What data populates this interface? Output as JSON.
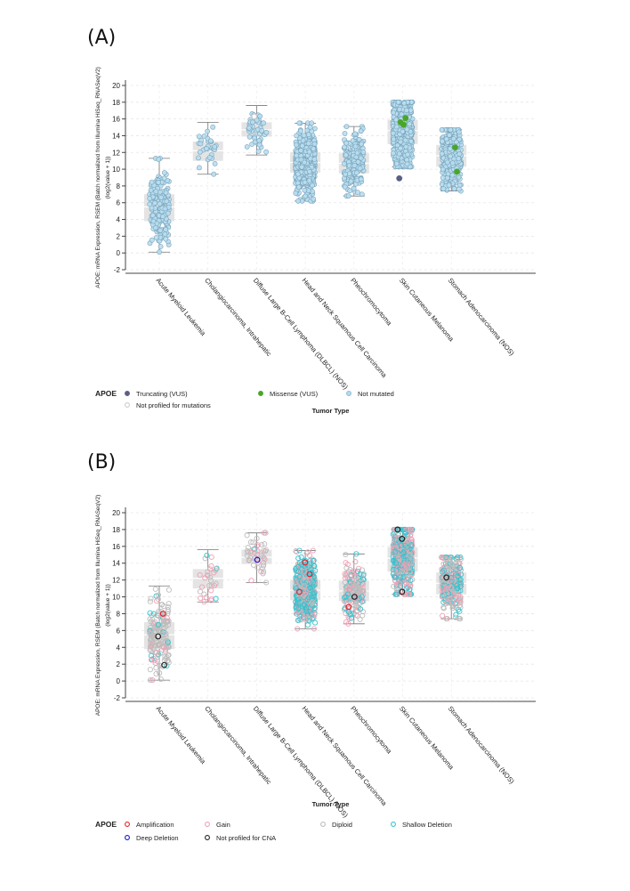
{
  "panels": [
    {
      "label": "(A)"
    },
    {
      "label": "(B)"
    }
  ],
  "chart_data": [
    {
      "type": "scatter",
      "subtype": "box-strip",
      "title": "",
      "ylabel_lines": [
        "APOE: mRNA Expression, RSEM (Batch normalized from Illumina HiSeq_RNASeqV2)",
        "(log2(value + 1))"
      ],
      "xlabel": "Tumor Type",
      "ylim": [
        -2,
        20
      ],
      "yticks": [
        -2,
        0,
        2,
        4,
        6,
        8,
        10,
        12,
        14,
        16,
        18,
        20
      ],
      "grid": true,
      "categories": [
        "Acute Myeloid Leukemia",
        "Cholangiocarcinoma, Intrahepatic",
        "Diffuse Large B-Cell Lymphoma (DLBCL) (NOS)",
        "Head and Neck Squamous Cell Carcinoma",
        "Pheochromocytoma",
        "Skin Cutaneous Melanoma",
        "Stomach Adenocarcinoma (NOS)"
      ],
      "boxes": [
        {
          "q1": 3.8,
          "median": 5.5,
          "q3": 7.0,
          "whisker_low": 0.1,
          "whisker_high": 11.3,
          "n": 170
        },
        {
          "q1": 11.0,
          "median": 12.2,
          "q3": 13.3,
          "whisker_low": 9.4,
          "whisker_high": 15.6,
          "n": 30
        },
        {
          "q1": 13.9,
          "median": 14.7,
          "q3": 15.6,
          "whisker_low": 11.7,
          "whisker_high": 17.6,
          "n": 45
        },
        {
          "q1": 9.6,
          "median": 10.8,
          "q3": 12.0,
          "whisker_low": 6.2,
          "whisker_high": 15.5,
          "n": 500
        },
        {
          "q1": 9.5,
          "median": 10.7,
          "q3": 11.9,
          "whisker_low": 6.8,
          "whisker_high": 15.1,
          "n": 180
        },
        {
          "q1": 13.0,
          "median": 14.6,
          "q3": 15.9,
          "whisker_low": 10.3,
          "whisker_high": 18.0,
          "n": 470
        },
        {
          "q1": 10.3,
          "median": 11.6,
          "q3": 12.9,
          "whisker_low": 7.4,
          "whisker_high": 14.7,
          "n": 280
        }
      ],
      "highlight_points": [
        {
          "category": 5,
          "value": 15.6,
          "type": "Missense (VUS)"
        },
        {
          "category": 5,
          "value": 16.1,
          "type": "Missense (VUS)"
        },
        {
          "category": 5,
          "value": 15.3,
          "type": "Missense (VUS)"
        },
        {
          "category": 5,
          "value": 8.9,
          "type": "Truncating (VUS)"
        },
        {
          "category": 6,
          "value": 12.6,
          "type": "Missense (VUS)"
        },
        {
          "category": 6,
          "value": 9.7,
          "type": "Missense (VUS)"
        },
        {
          "category": 2,
          "value": 16.3,
          "type": "Not profiled for mutations"
        }
      ],
      "legend": {
        "title": "APOE",
        "entries": [
          {
            "label": "Truncating (VUS)",
            "fill": "#5b5f86",
            "stroke": "#5b5f86"
          },
          {
            "label": "Missense (VUS)",
            "fill": "#4aa628",
            "stroke": "#4aa628"
          },
          {
            "label": "Not mutated",
            "fill": "#b8def0",
            "stroke": "#8fbcd4"
          },
          {
            "label": "Not profiled for mutations",
            "fill": "#ffffff",
            "stroke": "#cccccc"
          }
        ]
      },
      "default_point": {
        "fill": "#b8def0",
        "stroke": "#7aa3bb"
      }
    },
    {
      "type": "scatter",
      "subtype": "box-strip",
      "title": "",
      "ylabel_lines": [
        "APOE: mRNA Expression, RSEM (Batch normalized from Illumina HiSeq_RNASeqV2)",
        "(log2(value + 1))"
      ],
      "xlabel": "Tumor Type",
      "ylim": [
        -2,
        20
      ],
      "yticks": [
        -2,
        0,
        2,
        4,
        6,
        8,
        10,
        12,
        14,
        16,
        18,
        20
      ],
      "grid": true,
      "categories": [
        "Acute Myeloid Leukemia",
        "Cholangiocarcinoma, Intrahepatic",
        "Diffuse Large B-Cell Lymphoma (DLBCL) (NOS)",
        "Head and Neck Squamous Cell Carcinoma",
        "Pheochromocytoma",
        "Skin Cutaneous Melanoma",
        "Stomach Adenocarcinoma (NOS)"
      ],
      "boxes": [
        {
          "q1": 3.8,
          "median": 5.5,
          "q3": 7.0,
          "whisker_low": 0.1,
          "whisker_high": 11.3,
          "n": 170
        },
        {
          "q1": 11.0,
          "median": 12.2,
          "q3": 13.3,
          "whisker_low": 9.4,
          "whisker_high": 15.6,
          "n": 30
        },
        {
          "q1": 13.9,
          "median": 14.7,
          "q3": 15.6,
          "whisker_low": 11.7,
          "whisker_high": 17.6,
          "n": 45
        },
        {
          "q1": 9.6,
          "median": 10.8,
          "q3": 12.0,
          "whisker_low": 6.2,
          "whisker_high": 15.5,
          "n": 500
        },
        {
          "q1": 9.5,
          "median": 10.7,
          "q3": 11.9,
          "whisker_low": 6.8,
          "whisker_high": 15.1,
          "n": 180
        },
        {
          "q1": 13.0,
          "median": 14.6,
          "q3": 15.9,
          "whisker_low": 10.3,
          "whisker_high": 18.0,
          "n": 470
        },
        {
          "q1": 10.3,
          "median": 11.6,
          "q3": 12.9,
          "whisker_low": 7.4,
          "whisker_high": 14.7,
          "n": 280
        }
      ],
      "highlight_points": [
        {
          "category": 0,
          "value": 8.0,
          "type": "Amplification"
        },
        {
          "category": 0,
          "value": 5.3,
          "type": "Not profiled for CNA"
        },
        {
          "category": 0,
          "value": 1.9,
          "type": "Not profiled for CNA"
        },
        {
          "category": 2,
          "value": 14.4,
          "type": "Deep Deletion"
        },
        {
          "category": 3,
          "value": 14.1,
          "type": "Amplification"
        },
        {
          "category": 3,
          "value": 12.7,
          "type": "Amplification"
        },
        {
          "category": 3,
          "value": 10.6,
          "type": "Amplification"
        },
        {
          "category": 4,
          "value": 8.8,
          "type": "Amplification"
        },
        {
          "category": 4,
          "value": 10.0,
          "type": "Not profiled for CNA"
        },
        {
          "category": 5,
          "value": 18.0,
          "type": "Not profiled for CNA"
        },
        {
          "category": 5,
          "value": 16.9,
          "type": "Not profiled for CNA"
        },
        {
          "category": 5,
          "value": 10.6,
          "type": "Not profiled for CNA"
        },
        {
          "category": 6,
          "value": 12.3,
          "type": "Not profiled for CNA"
        }
      ],
      "legend": {
        "title": "APOE",
        "entries": [
          {
            "label": "Amplification",
            "fill": "none",
            "stroke": "#e8202e"
          },
          {
            "label": "Gain",
            "fill": "none",
            "stroke": "#f0a0b4"
          },
          {
            "label": "Diploid",
            "fill": "none",
            "stroke": "#bdbdbd"
          },
          {
            "label": "Shallow Deletion",
            "fill": "none",
            "stroke": "#35c4cf"
          },
          {
            "label": "Deep Deletion",
            "fill": "none",
            "stroke": "#1515ce"
          },
          {
            "label": "Not profiled for CNA",
            "fill": "none",
            "stroke": "#222222"
          }
        ]
      },
      "mix": [
        [
          0.8,
          0.12,
          0.08
        ],
        [
          0.35,
          0.45,
          0.2
        ],
        [
          0.55,
          0.4,
          0.05
        ],
        [
          0.25,
          0.25,
          0.5
        ],
        [
          0.45,
          0.3,
          0.25
        ],
        [
          0.2,
          0.35,
          0.45
        ],
        [
          0.35,
          0.3,
          0.35
        ]
      ],
      "mix_order": [
        "Diploid",
        "Gain",
        "Shallow Deletion"
      ]
    }
  ]
}
